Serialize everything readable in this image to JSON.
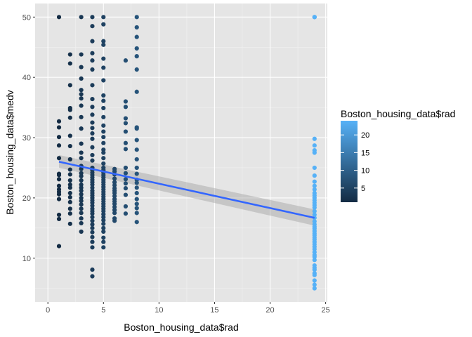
{
  "chart_data": {
    "type": "scatter",
    "xlabel": "Boston_housing_data$rad",
    "ylabel": "Boston_housing_data$medv",
    "xlim": [
      -1.15,
      25.15
    ],
    "ylim": [
      2.75,
      52.25
    ],
    "x_ticks": [
      0,
      5,
      10,
      15,
      20,
      25
    ],
    "y_ticks": [
      10,
      20,
      30,
      40,
      50
    ],
    "grid": true,
    "panel_background": "#E5E5E5",
    "color_scale": {
      "title": "Boston_housing_data$rad",
      "low_color": "#132B43",
      "high_color": "#56B1F7",
      "range": [
        1,
        24
      ],
      "breaks": [
        5,
        10,
        15,
        20
      ],
      "position": "right"
    },
    "regression": {
      "method": "lm",
      "color": "#3366FF",
      "fill": "#999999",
      "x_range": [
        1,
        24
      ],
      "fit": [
        26.0,
        16.7
      ],
      "ci_lower": [
        25.0,
        15.4
      ],
      "ci_upper": [
        27.1,
        18.1
      ]
    },
    "series": [
      {
        "x": 1,
        "values": [
          50.0,
          32.7,
          31.7,
          30.1,
          28.7,
          26.6,
          24.0,
          23.8,
          23.1,
          22.0,
          21.4,
          21.0,
          20.6,
          19.8,
          17.2,
          16.5,
          12.0
        ]
      },
      {
        "x": 2,
        "values": [
          43.8,
          42.3,
          38.7,
          34.9,
          34.6,
          33.3,
          30.3,
          28.6,
          26.4,
          24.7,
          23.9,
          22.9,
          22.2,
          21.7,
          20.8,
          20.1,
          19.3,
          18.2,
          17.4,
          15.7
        ]
      },
      {
        "x": 3,
        "values": [
          50.0,
          43.8,
          41.7,
          39.8,
          37.9,
          37.2,
          36.5,
          35.3,
          33.4,
          31.5,
          29.0,
          27.5,
          26.6,
          25.3,
          24.8,
          24.1,
          23.6,
          22.9,
          22.2,
          21.7,
          21.2,
          20.6,
          20.0,
          19.5,
          18.9,
          18.2,
          17.5,
          16.6,
          15.8,
          14.4
        ]
      },
      {
        "x": 4,
        "values": [
          50.0,
          48.5,
          46.0,
          44.0,
          42.8,
          41.3,
          38.7,
          36.4,
          35.1,
          33.8,
          32.5,
          31.6,
          30.7,
          29.8,
          28.4,
          27.1,
          26.2,
          25.0,
          24.6,
          24.2,
          23.8,
          23.4,
          23.0,
          22.6,
          22.2,
          21.7,
          21.2,
          20.8,
          20.4,
          20.0,
          19.6,
          19.2,
          18.7,
          18.2,
          17.8,
          17.4,
          16.8,
          16.2,
          15.6,
          15.0,
          14.3,
          13.5,
          12.7,
          11.8,
          8.1,
          7.0
        ]
      },
      {
        "x": 5,
        "values": [
          50.0,
          48.8,
          46.0,
          45.4,
          43.1,
          41.6,
          39.5,
          37.0,
          36.1,
          34.9,
          33.4,
          32.0,
          31.0,
          30.1,
          29.1,
          28.0,
          27.5,
          26.6,
          25.7,
          25.0,
          24.6,
          24.2,
          23.8,
          23.4,
          23.0,
          22.6,
          22.2,
          21.8,
          21.4,
          21.0,
          20.6,
          20.2,
          19.8,
          19.4,
          19.0,
          18.6,
          18.2,
          17.8,
          17.3,
          16.8,
          16.3,
          15.7,
          15.0,
          14.4,
          13.4,
          12.7,
          11.8
        ]
      },
      {
        "x": 6,
        "values": [
          24.8,
          24.4,
          23.9,
          23.2,
          22.6,
          22.1,
          21.6,
          21.2,
          20.8,
          20.3,
          19.8,
          19.4,
          19.0,
          18.5,
          18.0,
          17.5,
          16.6,
          16.2
        ]
      },
      {
        "x": 7,
        "values": [
          42.8,
          36.0,
          35.1,
          33.2,
          32.4,
          31.0,
          29.1,
          28.1,
          25.0,
          24.1,
          23.1,
          22.4,
          21.6,
          20.5,
          18.6,
          17.4
        ]
      },
      {
        "x": 8,
        "values": [
          50.0,
          48.3,
          46.7,
          44.8,
          43.5,
          41.3,
          37.6,
          31.7,
          31.5,
          29.6,
          28.0,
          26.4,
          25.0,
          24.0,
          23.0,
          22.5,
          21.7,
          20.8,
          19.8,
          19.0,
          18.3,
          17.5,
          16.0
        ]
      },
      {
        "x": 24,
        "values": [
          50.0,
          50.0,
          50.0,
          29.8,
          28.7,
          27.9,
          27.5,
          25.0,
          23.7,
          22.7,
          22.0,
          21.4,
          20.8,
          20.4,
          20.0,
          19.6,
          19.2,
          18.8,
          18.4,
          17.8,
          17.2,
          16.7,
          16.1,
          15.6,
          15.2,
          14.9,
          14.5,
          14.1,
          13.8,
          13.4,
          13.1,
          12.7,
          12.3,
          11.9,
          11.5,
          11.0,
          10.5,
          10.2,
          9.7,
          8.8,
          8.4,
          8.1,
          7.5,
          7.2,
          6.3,
          5.6,
          5.0
        ]
      }
    ]
  }
}
